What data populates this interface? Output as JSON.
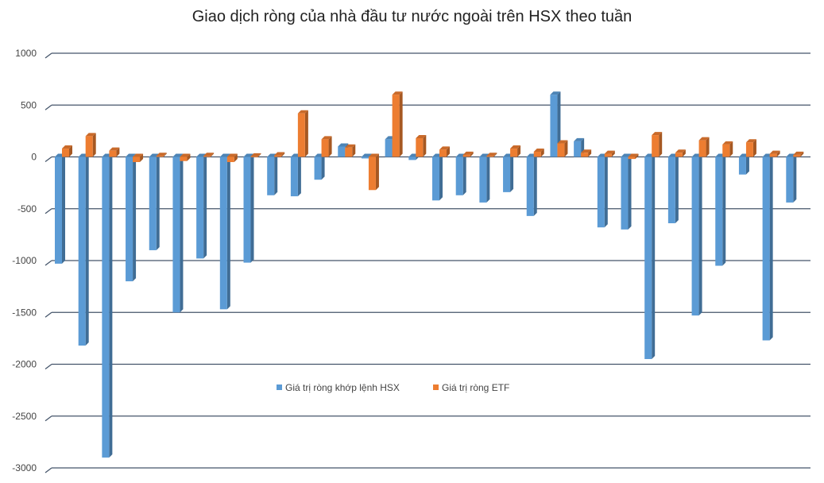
{
  "chart_data": {
    "type": "bar",
    "title": "Giao dịch ròng của nhà đầu tư nước ngoài trên HSX theo tuần",
    "xlabel": "",
    "ylabel": "",
    "ylim": [
      -3000,
      1000
    ],
    "yticks": [
      1000,
      500,
      0,
      -500,
      -1000,
      -1500,
      -2000,
      -2500,
      -3000
    ],
    "grid": true,
    "legend_position": "center",
    "series": [
      {
        "name": "Giá trị ròng khớp lệnh HSX",
        "color": "#5B9BD5",
        "values": [
          -1030,
          -1820,
          -2900,
          -1200,
          -900,
          -1500,
          -980,
          -1470,
          -1020,
          -370,
          -380,
          -220,
          100,
          -15,
          170,
          -30,
          -420,
          -370,
          -440,
          -340,
          -570,
          600,
          150,
          -680,
          -700,
          -1950,
          -640,
          -1530,
          -1050,
          -170,
          -1770,
          -440
        ]
      },
      {
        "name": "Giá trị ròng ETF",
        "color": "#ED7D31",
        "values": [
          80,
          200,
          60,
          -50,
          10,
          -40,
          10,
          -50,
          5,
          15,
          420,
          170,
          90,
          -320,
          600,
          180,
          70,
          20,
          10,
          80,
          50,
          130,
          40,
          30,
          -20,
          210,
          40,
          160,
          120,
          140,
          30,
          20
        ]
      }
    ]
  }
}
